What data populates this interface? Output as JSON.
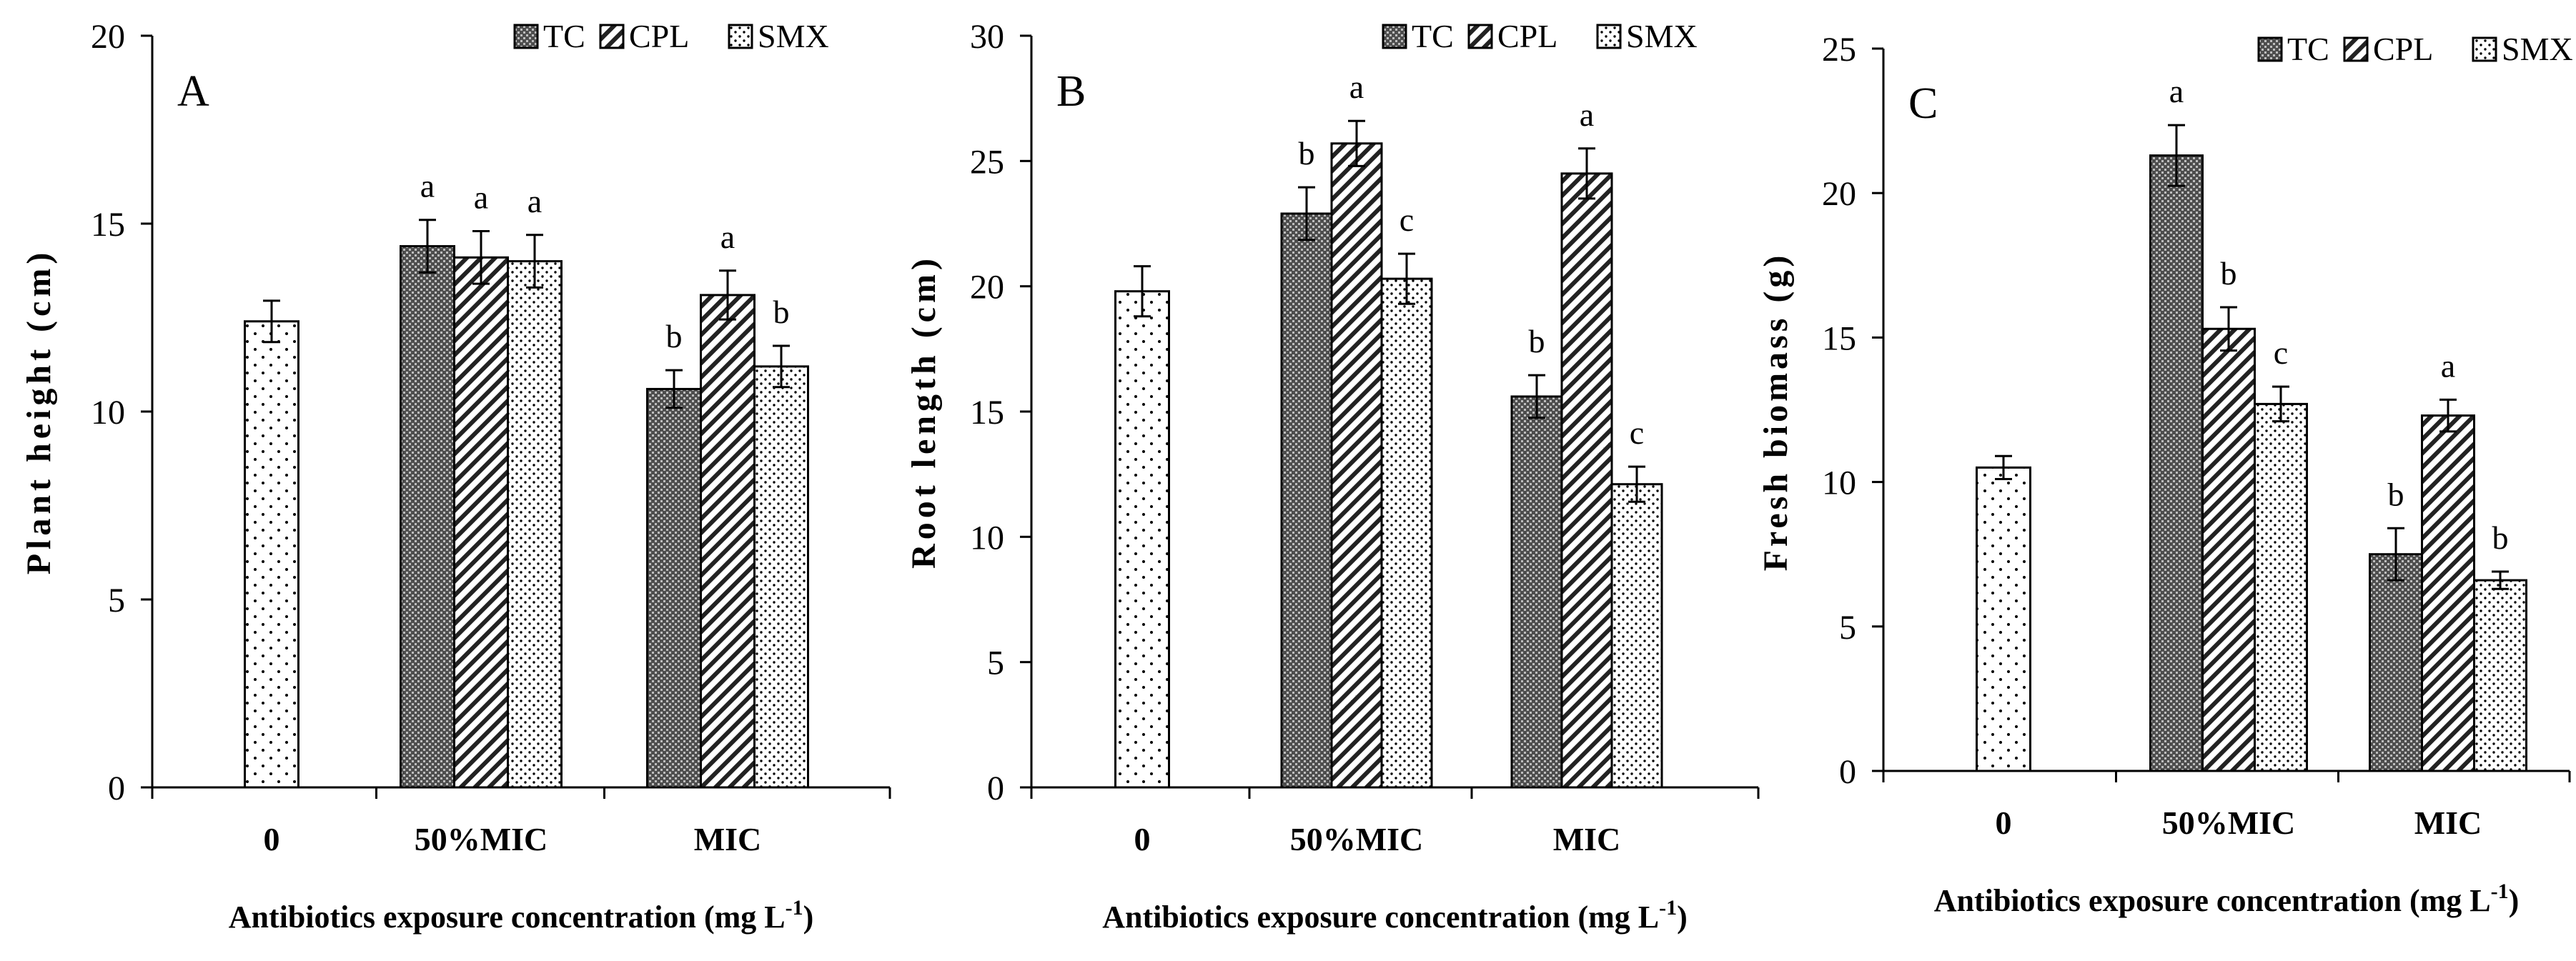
{
  "x_axis_title": {
    "main": "Antibiotics exposure concentration (mg L",
    "sup": "-1",
    "close": ")"
  },
  "legend_labels": [
    "TC",
    "CPL",
    "SMX"
  ],
  "chart_data": [
    {
      "type": "bar",
      "panel": "A",
      "ylabel": "Plant height (cm)",
      "xlabel": "Antibiotics exposure concentration (mg L-1)",
      "ylim": [
        0,
        20
      ],
      "yticks": [
        0,
        5,
        10,
        15,
        20
      ],
      "categories": [
        "0",
        "50%MIC",
        "MIC"
      ],
      "control": {
        "value": 12.4,
        "error": 0.55
      },
      "series": [
        {
          "name": "TC",
          "values": [
            null,
            14.4,
            10.6
          ],
          "errors": [
            null,
            0.7,
            0.5
          ],
          "letters": [
            "",
            "a",
            "b"
          ]
        },
        {
          "name": "CPL",
          "values": [
            null,
            14.1,
            13.1
          ],
          "errors": [
            null,
            0.7,
            0.65
          ],
          "letters": [
            "",
            "a",
            "a"
          ]
        },
        {
          "name": "SMX",
          "values": [
            null,
            14.0,
            11.2
          ],
          "errors": [
            null,
            0.7,
            0.55
          ],
          "letters": [
            "",
            "a",
            "b"
          ]
        }
      ]
    },
    {
      "type": "bar",
      "panel": "B",
      "ylabel": "Root length (cm)",
      "xlabel": "Antibiotics exposure concentration (mg L-1)",
      "ylim": [
        0,
        30
      ],
      "yticks": [
        0,
        5,
        10,
        15,
        20,
        25,
        30
      ],
      "categories": [
        "0",
        "50%MIC",
        "MIC"
      ],
      "control": {
        "value": 19.8,
        "error": 1.0
      },
      "series": [
        {
          "name": "TC",
          "values": [
            null,
            22.9,
            15.6
          ],
          "errors": [
            null,
            1.05,
            0.85
          ],
          "letters": [
            "",
            "b",
            "b"
          ]
        },
        {
          "name": "CPL",
          "values": [
            null,
            25.7,
            24.5
          ],
          "errors": [
            null,
            0.9,
            1.0
          ],
          "letters": [
            "",
            "a",
            "a"
          ]
        },
        {
          "name": "SMX",
          "values": [
            null,
            20.3,
            12.1
          ],
          "errors": [
            null,
            1.0,
            0.7
          ],
          "letters": [
            "",
            "c",
            "c"
          ]
        }
      ]
    },
    {
      "type": "bar",
      "panel": "C",
      "ylabel": "Fresh biomass (g)",
      "xlabel": "Antibiotics exposure concentration (mg L-1)",
      "ylim": [
        0,
        25
      ],
      "yticks": [
        0,
        5,
        10,
        15,
        20,
        25
      ],
      "categories": [
        "0",
        "50%MIC",
        "MIC"
      ],
      "control": {
        "value": 10.5,
        "error": 0.4
      },
      "series": [
        {
          "name": "TC",
          "values": [
            null,
            21.3,
            7.5
          ],
          "errors": [
            null,
            1.05,
            0.9
          ],
          "letters": [
            "",
            "a",
            "b"
          ]
        },
        {
          "name": "CPL",
          "values": [
            null,
            15.3,
            12.3
          ],
          "errors": [
            null,
            0.75,
            0.55
          ],
          "letters": [
            "",
            "b",
            "a"
          ]
        },
        {
          "name": "SMX",
          "values": [
            null,
            12.7,
            6.6
          ],
          "errors": [
            null,
            0.6,
            0.3
          ],
          "letters": [
            "",
            "c",
            "b"
          ]
        }
      ]
    }
  ]
}
